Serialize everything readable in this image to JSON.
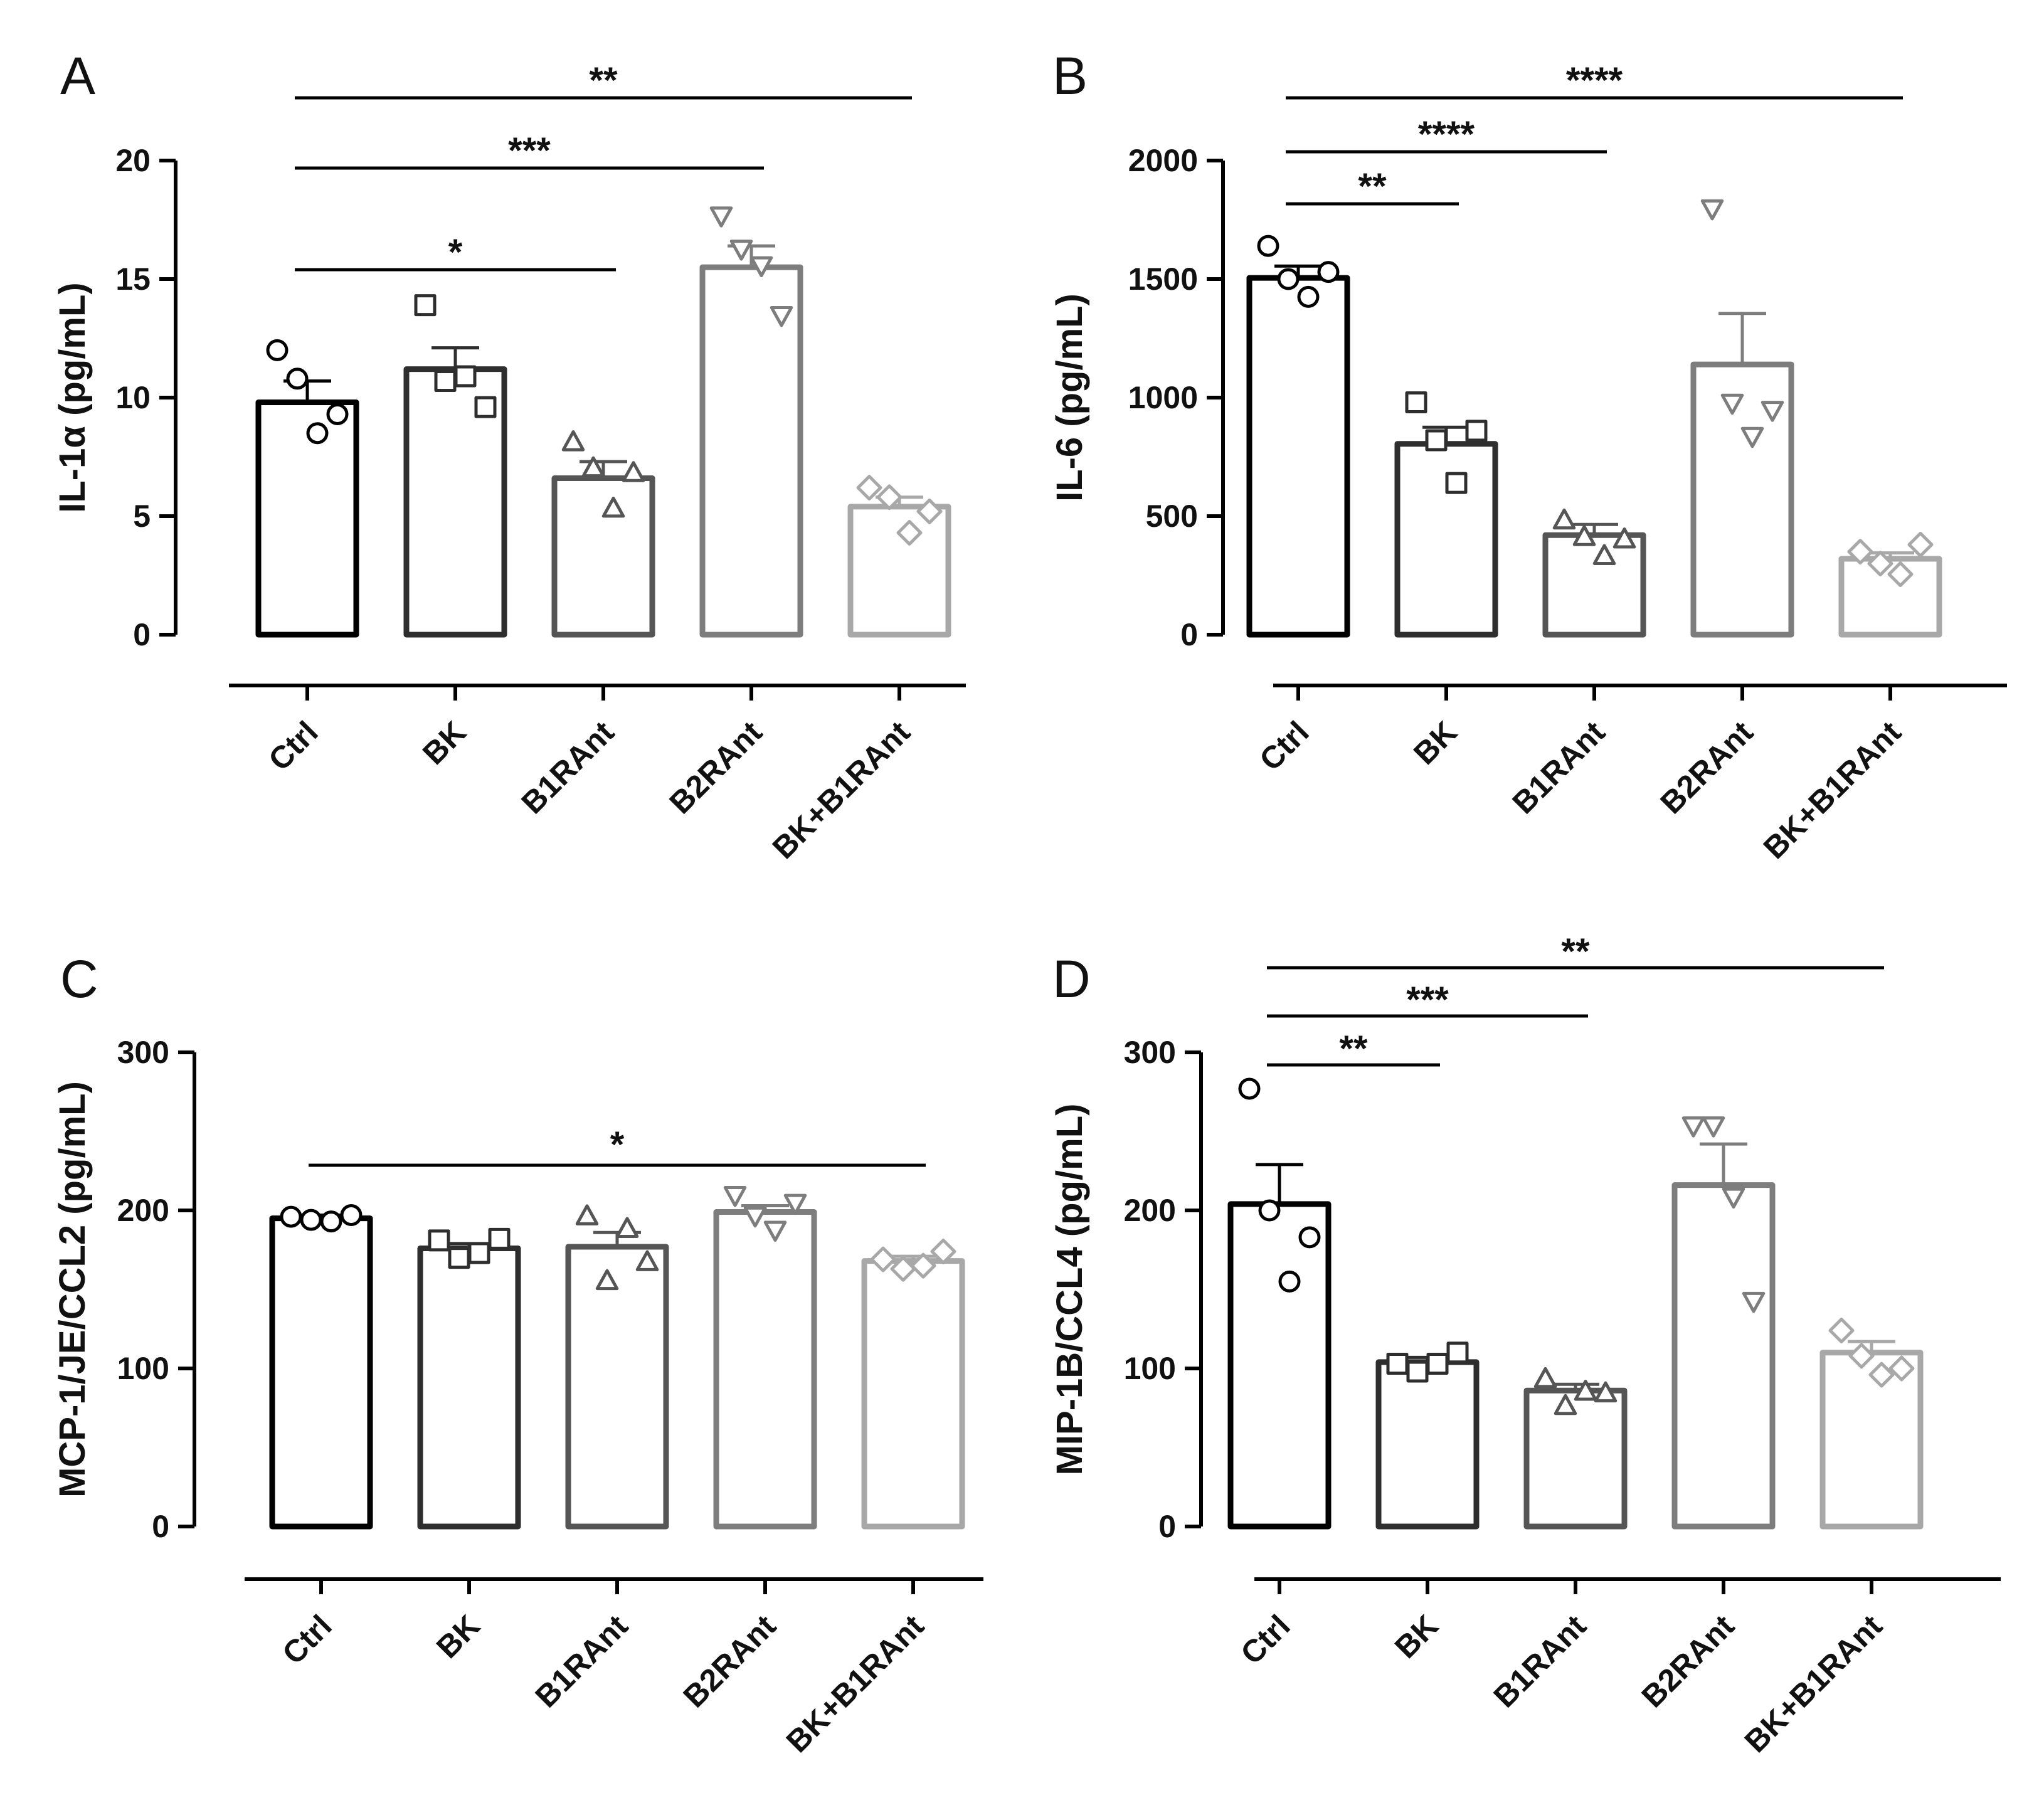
{
  "chart_data": [
    {
      "type": "bar",
      "panel": "A",
      "ylabel": "IL-1α (pg/mL)",
      "ylim": [
        0,
        20
      ],
      "yticks": [
        0,
        5,
        10,
        15,
        20
      ],
      "categories": [
        "Ctrl",
        "BK",
        "B1RAnt",
        "B2RAnt",
        "BK+B1RAnt"
      ],
      "colors": [
        "#000000",
        "#2e2e2e",
        "#555555",
        "#7d7d7d",
        "#a8a8a8"
      ],
      "markers": [
        "circle",
        "square",
        "triangle",
        "triangle-down",
        "diamond"
      ],
      "values": [
        9.8,
        11.2,
        6.6,
        15.5,
        5.4
      ],
      "sem": [
        0.9,
        0.9,
        0.7,
        0.9,
        0.4
      ],
      "points": [
        [
          12.0,
          10.8,
          8.5,
          9.3
        ],
        [
          13.9,
          10.7,
          10.9,
          9.6
        ],
        [
          8.1,
          7.0,
          5.3,
          6.8
        ],
        [
          17.7,
          16.3,
          15.6,
          13.5
        ],
        [
          6.2,
          5.8,
          4.3,
          5.2
        ]
      ],
      "significance": [
        {
          "from": 0,
          "to": 4,
          "label": "**"
        },
        {
          "from": 0,
          "to": 3,
          "label": "***"
        },
        {
          "from": 0,
          "to": 2,
          "label": "*"
        }
      ]
    },
    {
      "type": "bar",
      "panel": "B",
      "ylabel": "IL-6 (pg/mL)",
      "ylim": [
        0,
        2000
      ],
      "yticks": [
        0,
        500,
        1000,
        1500,
        2000
      ],
      "categories": [
        "Ctrl",
        "BK",
        "B1RAnt",
        "B2RAnt",
        "BK+B1RAnt"
      ],
      "colors": [
        "#000000",
        "#2e2e2e",
        "#555555",
        "#7d7d7d",
        "#a8a8a8"
      ],
      "markers": [
        "circle",
        "square",
        "triangle",
        "triangle-down",
        "diamond"
      ],
      "values": [
        1505,
        805,
        420,
        1140,
        320
      ],
      "sem": [
        50,
        70,
        45,
        215,
        25
      ],
      "points": [
        [
          1640,
          1500,
          1425,
          1530
        ],
        [
          980,
          820,
          640,
          860
        ],
        [
          480,
          410,
          330,
          400
        ],
        [
          1800,
          980,
          840,
          950
        ],
        [
          350,
          300,
          255,
          380
        ]
      ],
      "significance": [
        {
          "from": 0,
          "to": 4,
          "label": "****"
        },
        {
          "from": 0,
          "to": 2,
          "label": "****"
        },
        {
          "from": 0,
          "to": 1,
          "label": "**"
        }
      ]
    },
    {
      "type": "bar",
      "panel": "C",
      "ylabel": "MCP-1/JE/CCL2 (pg/mL)",
      "ylim": [
        0,
        300
      ],
      "yticks": [
        0,
        100,
        200,
        300
      ],
      "categories": [
        "Ctrl",
        "BK",
        "B1RAnt",
        "B2RAnt",
        "BK+B1RAnt"
      ],
      "colors": [
        "#000000",
        "#2e2e2e",
        "#555555",
        "#7d7d7d",
        "#a8a8a8"
      ],
      "markers": [
        "circle",
        "square",
        "triangle",
        "triangle-down",
        "diamond"
      ],
      "values": [
        195,
        176,
        177,
        199,
        168
      ],
      "sem": [
        2,
        3,
        9,
        4,
        3
      ],
      "points": [
        [
          196,
          194,
          193,
          197
        ],
        [
          181,
          170,
          173,
          182
        ],
        [
          196,
          155,
          188,
          167
        ],
        [
          210,
          197,
          188,
          205
        ],
        [
          169,
          163,
          165,
          174
        ]
      ],
      "significance": [
        {
          "from": 0,
          "to": 4,
          "label": "*"
        }
      ]
    },
    {
      "type": "bar",
      "panel": "D",
      "ylabel": "MIP-1B/CCL4 (pg/mL)",
      "ylim": [
        0,
        300
      ],
      "yticks": [
        0,
        100,
        200,
        300
      ],
      "categories": [
        "Ctrl",
        "BK",
        "B1RAnt",
        "B2RAnt",
        "BK+B1RAnt"
      ],
      "colors": [
        "#000000",
        "#2e2e2e",
        "#555555",
        "#7d7d7d",
        "#a8a8a8"
      ],
      "markers": [
        "circle",
        "square",
        "triangle",
        "triangle-down",
        "diamond"
      ],
      "values": [
        204,
        104,
        86,
        216,
        110
      ],
      "sem": [
        25,
        3,
        4,
        26,
        7
      ],
      "points": [
        [
          277,
          200,
          155,
          183
        ],
        [
          103,
          98,
          103,
          110
        ],
        [
          93,
          76,
          85,
          84
        ],
        [
          254,
          254,
          209,
          143
        ],
        [
          124,
          108,
          96,
          100
        ]
      ],
      "significance": [
        {
          "from": 0,
          "to": 4,
          "label": "**"
        },
        {
          "from": 0,
          "to": 2,
          "label": "***"
        },
        {
          "from": 0,
          "to": 1,
          "label": "**"
        }
      ]
    }
  ]
}
